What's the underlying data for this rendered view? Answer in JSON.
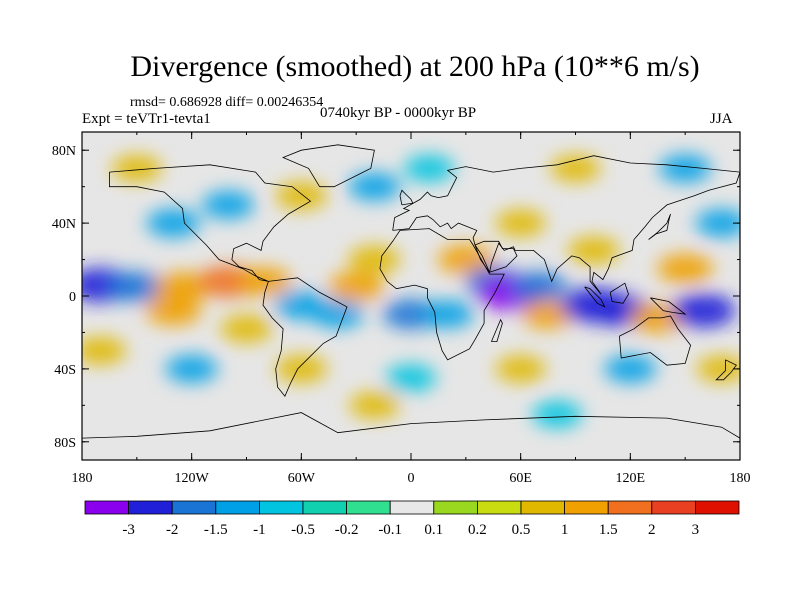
{
  "header": {
    "title": "Divergence (smoothed) at 200 hPa (10**6 m/s)",
    "stats": "rmsd= 0.686928 diff= 0.00246354",
    "experiment": "Expt = teVTr1-tevta1",
    "period": "0740kyr BP - 0000kyr BP",
    "season": "JJA"
  },
  "map": {
    "lat_ticks": [
      "80N",
      "40N",
      "0",
      "40S",
      "80S"
    ],
    "lon_ticks": [
      "180",
      "120W",
      "60W",
      "0",
      "60E",
      "120E",
      "180"
    ],
    "background_color": "#e6e6e6",
    "coastline_color": "#000000"
  },
  "colorbar": {
    "colors": [
      "#8a00ee",
      "#2020d8",
      "#1a74d6",
      "#00a0e6",
      "#00c4e0",
      "#10d0b0",
      "#30e090",
      "#e8e8e8",
      "#9ad820",
      "#c8dc10",
      "#e0b800",
      "#f0a000",
      "#f07020",
      "#e84020",
      "#e01000"
    ],
    "labels": [
      "-3",
      "-2",
      "-1.5",
      "-1",
      "-0.5",
      "-0.2",
      "-0.1",
      "0.1",
      "0.2",
      "0.5",
      "1",
      "1.5",
      "2",
      "3"
    ]
  },
  "field_blobs": [
    {
      "lon": -170,
      "lat": 6,
      "value": -2.5
    },
    {
      "lon": -150,
      "lat": 5,
      "value": -1.5
    },
    {
      "lon": -125,
      "lat": 5,
      "value": 1.5
    },
    {
      "lon": -100,
      "lat": 8,
      "value": 2.0
    },
    {
      "lon": -80,
      "lat": 8,
      "value": 1.2
    },
    {
      "lon": -130,
      "lat": -8,
      "value": 1.5
    },
    {
      "lon": -90,
      "lat": -18,
      "value": 1.0
    },
    {
      "lon": -60,
      "lat": -5,
      "value": -1.2
    },
    {
      "lon": -40,
      "lat": -10,
      "value": -1.0
    },
    {
      "lon": -30,
      "lat": 5,
      "value": 1.5
    },
    {
      "lon": -20,
      "lat": 20,
      "value": 1.0
    },
    {
      "lon": 0,
      "lat": -10,
      "value": -1.5
    },
    {
      "lon": 20,
      "lat": -10,
      "value": -1.0
    },
    {
      "lon": 30,
      "lat": 20,
      "value": 1.5
    },
    {
      "lon": 45,
      "lat": 8,
      "value": -1.5
    },
    {
      "lon": 55,
      "lat": 2,
      "value": -3.0
    },
    {
      "lon": 70,
      "lat": 5,
      "value": -1.5
    },
    {
      "lon": 75,
      "lat": -10,
      "value": 1.2
    },
    {
      "lon": 100,
      "lat": -5,
      "value": -2.8
    },
    {
      "lon": 115,
      "lat": -8,
      "value": -2.0
    },
    {
      "lon": 135,
      "lat": -12,
      "value": 1.5
    },
    {
      "lon": 160,
      "lat": -8,
      "value": -2.5
    },
    {
      "lon": 150,
      "lat": 15,
      "value": 1.5
    },
    {
      "lon": 100,
      "lat": 25,
      "value": 1.0
    },
    {
      "lon": 60,
      "lat": 40,
      "value": 0.8
    },
    {
      "lon": -100,
      "lat": 50,
      "value": -1.0
    },
    {
      "lon": -60,
      "lat": 55,
      "value": 1.0
    },
    {
      "lon": -20,
      "lat": 60,
      "value": -1.0
    },
    {
      "lon": 10,
      "lat": 70,
      "value": -0.8
    },
    {
      "lon": 90,
      "lat": 70,
      "value": 0.8
    },
    {
      "lon": 150,
      "lat": 70,
      "value": -1.0
    },
    {
      "lon": -150,
      "lat": 70,
      "value": 0.8
    },
    {
      "lon": -130,
      "lat": 40,
      "value": -1.2
    },
    {
      "lon": 170,
      "lat": 40,
      "value": -1.0
    },
    {
      "lon": -170,
      "lat": -30,
      "value": 1.0
    },
    {
      "lon": -120,
      "lat": -40,
      "value": -1.0
    },
    {
      "lon": -60,
      "lat": -40,
      "value": 1.0
    },
    {
      "lon": 0,
      "lat": -45,
      "value": -0.8
    },
    {
      "lon": 60,
      "lat": -40,
      "value": 0.8
    },
    {
      "lon": 120,
      "lat": -40,
      "value": -1.0
    },
    {
      "lon": 170,
      "lat": -40,
      "value": 0.8
    },
    {
      "lon": -20,
      "lat": -60,
      "value": 0.8
    },
    {
      "lon": 80,
      "lat": -65,
      "value": -0.8
    }
  ]
}
